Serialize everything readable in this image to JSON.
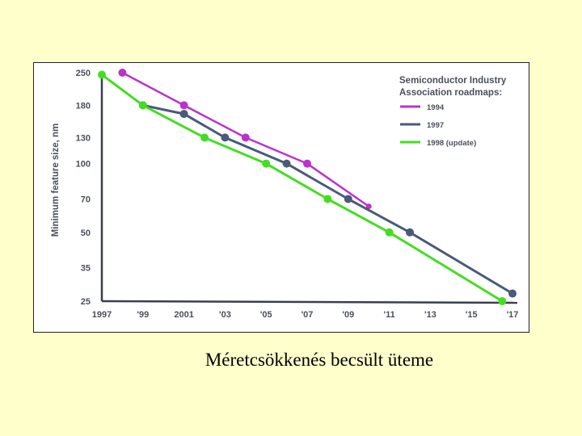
{
  "caption": "Méretcsökkenés becsült üteme",
  "chart_data": {
    "type": "line",
    "ylabel": "Minimum feature size, nm",
    "xlabel": "",
    "y_scale": "log",
    "y_ticks": [
      25,
      35,
      50,
      70,
      100,
      130,
      180,
      250
    ],
    "y_tick_labels": [
      "25",
      "35",
      "50",
      "70",
      "100",
      "130",
      "180",
      "250"
    ],
    "x_ticks": [
      1997,
      1999,
      2001,
      2003,
      2005,
      2007,
      2009,
      2011,
      2013,
      2015,
      2017
    ],
    "x_tick_labels": [
      "1997",
      "'99",
      "2001",
      "'03",
      "'05",
      "'07",
      "'09",
      "'11",
      "'13",
      "'15",
      "'17"
    ],
    "xlim": [
      1997,
      2017
    ],
    "ylim": [
      25,
      250
    ],
    "legend": {
      "title_lines": [
        "Semiconductor Industry",
        "Association roadmaps:"
      ],
      "placement": "top-right"
    },
    "series": [
      {
        "name": "1994",
        "color": "#bb33cc",
        "x": [
          1998,
          2001,
          2004,
          2007,
          2010
        ],
        "y": [
          250,
          180,
          130,
          100,
          65
        ]
      },
      {
        "name": "1997",
        "color": "#4a5a78",
        "x": [
          1999,
          2001,
          2003,
          2006,
          2009,
          2012,
          2017
        ],
        "y": [
          180,
          165,
          130,
          100,
          70,
          50,
          27
        ]
      },
      {
        "name": "1998 (update)",
        "color": "#44dd22",
        "x": [
          1997,
          1999,
          2002,
          2005,
          2008,
          2011,
          2016.5
        ],
        "y": [
          245,
          180,
          130,
          100,
          70,
          50,
          25
        ]
      }
    ]
  }
}
